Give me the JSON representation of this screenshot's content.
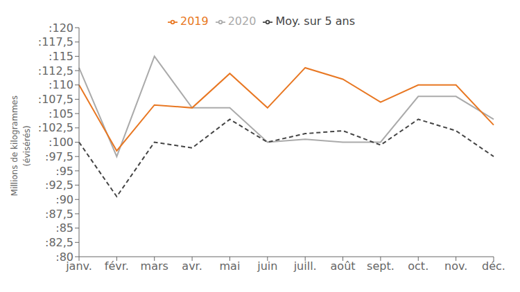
{
  "chart_data": {
    "type": "line",
    "categories": [
      "janv.",
      "févr.",
      "mars",
      "avr.",
      "mai",
      "juin",
      "juill.",
      "août",
      "sept.",
      "oct.",
      "nov.",
      "déc."
    ],
    "series": [
      {
        "name": "2020",
        "color": "#aaaaaa",
        "line_style": "solid",
        "values": [
          113,
          97.5,
          115,
          106,
          106,
          100,
          100.5,
          100,
          100,
          108,
          108,
          104
        ]
      },
      {
        "name": "2019",
        "color": "#E87722",
        "line_style": "solid",
        "values": [
          110,
          98.5,
          106.5,
          106,
          112,
          106,
          113,
          111,
          107,
          110,
          110,
          103
        ]
      },
      {
        "name": "Moy. sur 5 ans",
        "color": "#444444",
        "line_style": "dashed",
        "values": [
          100,
          90.5,
          100,
          99,
          104,
          100,
          101.5,
          102,
          99.5,
          104,
          102,
          97.5
        ]
      }
    ],
    "ylabel": "Millions de kilogrammes\n(évisérés)",
    "ylim": [
      80,
      120
    ],
    "yticks": [
      {
        "value": 80,
        "label": ":80"
      },
      {
        "value": 82.5,
        "label": ":82,5"
      },
      {
        "value": 85,
        "label": ":85"
      },
      {
        "value": 87.5,
        "label": ":87,5"
      },
      {
        "value": 90,
        "label": ":90"
      },
      {
        "value": 92.5,
        "label": ":92,5"
      },
      {
        "value": 95,
        "label": ":95"
      },
      {
        "value": 97.5,
        "label": ":97,5"
      },
      {
        "value": 100,
        "label": ":100"
      },
      {
        "value": 102.5,
        "label": ":102,5"
      },
      {
        "value": 105,
        "label": ":105"
      },
      {
        "value": 107.5,
        "label": ":107,5"
      },
      {
        "value": 110,
        "label": ":110"
      },
      {
        "value": 112.5,
        "label": ":112,5"
      },
      {
        "value": 115,
        "label": ":115"
      },
      {
        "value": 117.5,
        "label": ":117,5"
      },
      {
        "value": 120,
        "label": ":120"
      }
    ],
    "grid": false,
    "legend": "top"
  }
}
